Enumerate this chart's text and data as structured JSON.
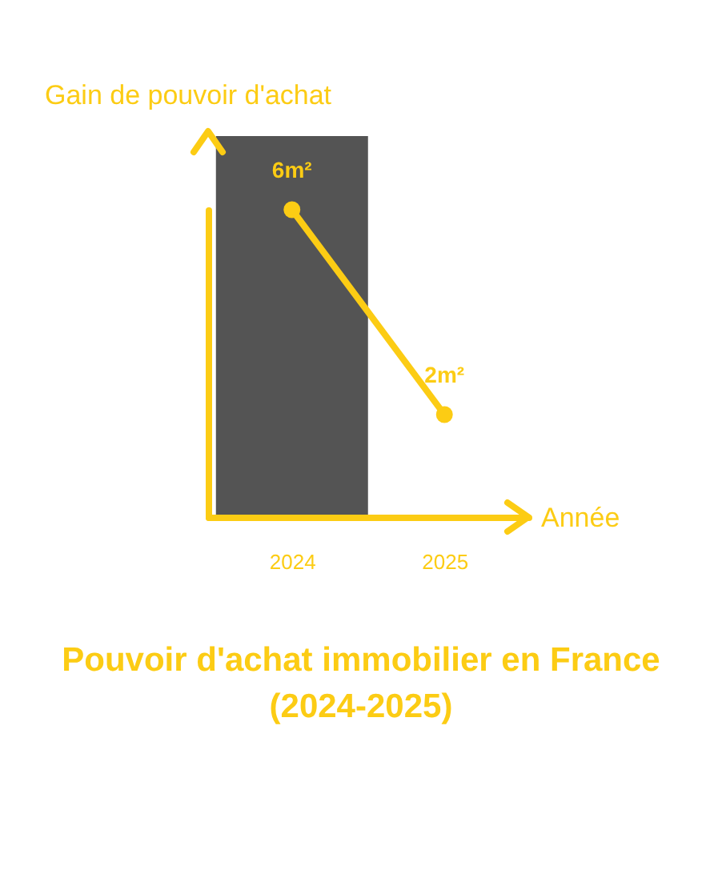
{
  "chart_data": {
    "type": "line",
    "title": "Pouvoir d'achat immobilier en France (2024-2025)",
    "xlabel": "Année",
    "ylabel": "Gain de pouvoir d'achat",
    "categories": [
      "2024",
      "2025"
    ],
    "series": [
      {
        "color": "#fccc14",
        "values": [
          6,
          2
        ],
        "value_labels": [
          "6m²",
          "2m²"
        ]
      }
    ],
    "bands": [
      {
        "axis": "x",
        "from": "2024",
        "to": "2024",
        "color": "#545454"
      }
    ],
    "marker": "circle",
    "line_style": "solid",
    "tick_labels": "x"
  }
}
